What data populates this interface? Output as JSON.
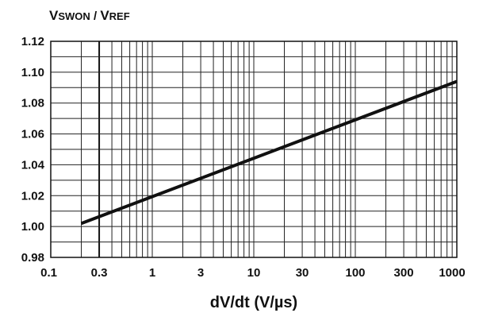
{
  "chart_data": {
    "type": "line",
    "title": "",
    "ylabel": {
      "main1": "V",
      "sub1": "SWON",
      "sep": " / ",
      "main2": "V",
      "sub2": "REF"
    },
    "xlabel": "dV/dt (V/µs)",
    "x_scale": "log",
    "xlim": [
      0.1,
      1000
    ],
    "ylim": [
      0.98,
      1.12
    ],
    "grid": true,
    "x_ticks": [
      0.1,
      0.3,
      1,
      3,
      10,
      30,
      100,
      300,
      1000
    ],
    "x_tick_labels": [
      "0.1",
      "0.3",
      "1",
      "3",
      "10",
      "30",
      "100",
      "300",
      "1000"
    ],
    "y_ticks": [
      0.98,
      1.0,
      1.02,
      1.04,
      1.06,
      1.08,
      1.1,
      1.12
    ],
    "y_tick_labels": [
      "0.98",
      "1.00",
      "1.02",
      "1.04",
      "1.06",
      "1.08",
      "1.10",
      "1.12"
    ],
    "series": [
      {
        "x": [
          0.2,
          1000
        ],
        "y": [
          1.002,
          1.094
        ]
      }
    ]
  }
}
